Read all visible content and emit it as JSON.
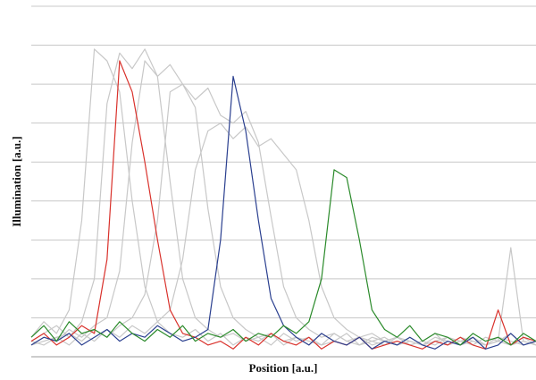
{
  "chart_data": {
    "type": "line",
    "x_label": "Position [a.u.]",
    "y_label": "Illumination [a.u.]",
    "x": [
      0,
      2.5,
      5,
      7.5,
      10,
      12.5,
      15,
      17.5,
      20,
      22.5,
      25,
      27.5,
      30,
      32.5,
      35,
      37.5,
      40,
      42.5,
      45,
      47.5,
      50,
      52.5,
      55,
      57.5,
      60,
      62.5,
      65,
      67.5,
      70,
      72.5,
      75,
      77.5,
      80,
      82.5,
      85,
      87.5,
      90,
      92.5,
      95,
      97.5,
      100
    ],
    "xlim": [
      0,
      100
    ],
    "ylim": [
      0,
      9
    ],
    "yticks": [
      1,
      2,
      3,
      4,
      5,
      6,
      7,
      8,
      9
    ],
    "grid": true,
    "tick_labels": false,
    "series": [
      {
        "color": "#c8c8c8",
        "values": [
          0.5,
          0.9,
          0.6,
          1.2,
          3.5,
          7.9,
          7.6,
          6.8,
          4.0,
          1.8,
          0.9,
          0.6,
          0.5,
          0.7,
          0.4,
          0.6,
          0.3,
          0.5,
          0.4,
          0.6,
          0.3,
          0.5,
          0.4,
          0.3,
          0.6,
          0.4,
          0.3,
          0.5,
          0.4,
          0.3,
          0.5,
          0.3,
          0.4,
          0.3,
          0.5,
          0.4,
          0.3,
          0.4,
          0.6,
          0.3,
          0.4
        ]
      },
      {
        "color": "#c8c8c8",
        "values": [
          0.4,
          0.6,
          0.8,
          0.5,
          0.9,
          2.0,
          6.5,
          7.8,
          7.4,
          7.9,
          7.2,
          4.5,
          2.0,
          1.0,
          0.7,
          0.5,
          0.6,
          0.4,
          0.5,
          0.3,
          0.6,
          0.4,
          0.5,
          0.3,
          0.4,
          0.6,
          0.3,
          0.4,
          0.5,
          0.3,
          0.4,
          0.3,
          0.5,
          0.4,
          0.3,
          0.5,
          0.3,
          0.4,
          0.3,
          0.5,
          0.3
        ]
      },
      {
        "color": "#c8c8c8",
        "values": [
          0.3,
          0.5,
          0.4,
          0.7,
          0.5,
          0.8,
          1.0,
          2.2,
          5.5,
          7.6,
          7.2,
          7.5,
          7.0,
          6.4,
          3.8,
          1.8,
          1.0,
          0.7,
          0.5,
          0.6,
          0.4,
          0.5,
          0.3,
          0.6,
          0.4,
          0.3,
          0.5,
          0.4,
          0.3,
          0.5,
          0.4,
          0.3,
          0.4,
          0.5,
          0.3,
          0.4,
          0.3,
          0.5,
          0.4,
          0.3,
          0.4
        ]
      },
      {
        "color": "#c8c8c8",
        "values": [
          0.4,
          0.3,
          0.5,
          0.6,
          0.4,
          0.7,
          0.5,
          0.8,
          1.0,
          1.6,
          3.5,
          6.8,
          7.0,
          6.6,
          6.9,
          6.2,
          6.0,
          6.3,
          5.5,
          3.6,
          1.8,
          1.0,
          0.7,
          0.5,
          0.6,
          0.4,
          0.5,
          0.3,
          0.4,
          0.5,
          0.3,
          0.4,
          0.3,
          0.5,
          0.4,
          0.3,
          0.5,
          0.4,
          0.3,
          0.4,
          0.3
        ]
      },
      {
        "color": "#c8c8c8",
        "values": [
          0.3,
          0.4,
          0.5,
          0.3,
          0.6,
          0.4,
          0.7,
          0.5,
          0.8,
          0.6,
          0.9,
          1.2,
          2.5,
          4.8,
          5.8,
          6.0,
          5.6,
          5.9,
          5.4,
          5.6,
          5.2,
          4.8,
          3.5,
          1.8,
          1.0,
          0.7,
          0.5,
          0.6,
          0.4,
          0.5,
          0.3,
          0.4,
          0.6,
          0.3,
          0.4,
          0.5,
          0.3,
          0.4,
          2.8,
          0.4,
          0.3
        ]
      },
      {
        "color": "#d9312b",
        "values": [
          0.4,
          0.6,
          0.3,
          0.5,
          0.8,
          0.6,
          2.5,
          7.6,
          6.8,
          5.0,
          3.0,
          1.2,
          0.6,
          0.5,
          0.3,
          0.4,
          0.2,
          0.5,
          0.3,
          0.6,
          0.4,
          0.3,
          0.5,
          0.2,
          0.4,
          0.3,
          0.5,
          0.2,
          0.3,
          0.4,
          0.3,
          0.2,
          0.4,
          0.3,
          0.5,
          0.3,
          0.2,
          1.2,
          0.3,
          0.5,
          0.4
        ]
      },
      {
        "color": "#2a3f8f",
        "values": [
          0.3,
          0.5,
          0.4,
          0.6,
          0.3,
          0.5,
          0.7,
          0.4,
          0.6,
          0.5,
          0.8,
          0.6,
          0.4,
          0.5,
          0.7,
          3.0,
          7.2,
          5.8,
          3.5,
          1.5,
          0.8,
          0.5,
          0.3,
          0.6,
          0.4,
          0.3,
          0.5,
          0.2,
          0.4,
          0.3,
          0.5,
          0.3,
          0.2,
          0.4,
          0.3,
          0.5,
          0.2,
          0.3,
          0.6,
          0.3,
          0.4
        ]
      },
      {
        "color": "#2a8a2a",
        "values": [
          0.5,
          0.8,
          0.4,
          0.9,
          0.6,
          0.7,
          0.5,
          0.9,
          0.6,
          0.4,
          0.7,
          0.5,
          0.8,
          0.4,
          0.6,
          0.5,
          0.7,
          0.4,
          0.6,
          0.5,
          0.8,
          0.6,
          0.9,
          2.0,
          4.8,
          4.6,
          3.0,
          1.2,
          0.7,
          0.5,
          0.8,
          0.4,
          0.6,
          0.5,
          0.3,
          0.6,
          0.4,
          0.5,
          0.3,
          0.6,
          0.4
        ]
      }
    ]
  }
}
